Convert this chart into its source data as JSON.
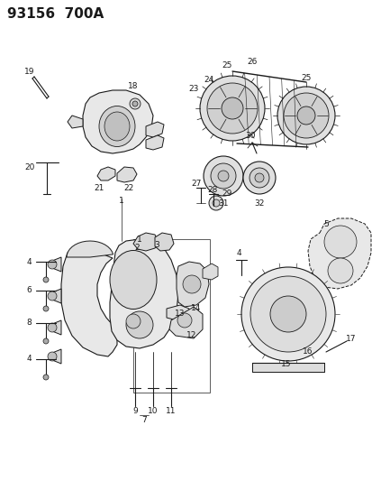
{
  "title": "93156  700A",
  "bg_color": "#ffffff",
  "line_color": "#1a1a1a",
  "title_fontsize": 11,
  "label_fontsize": 6.5,
  "figsize": [
    4.14,
    5.33
  ],
  "dpi": 100
}
